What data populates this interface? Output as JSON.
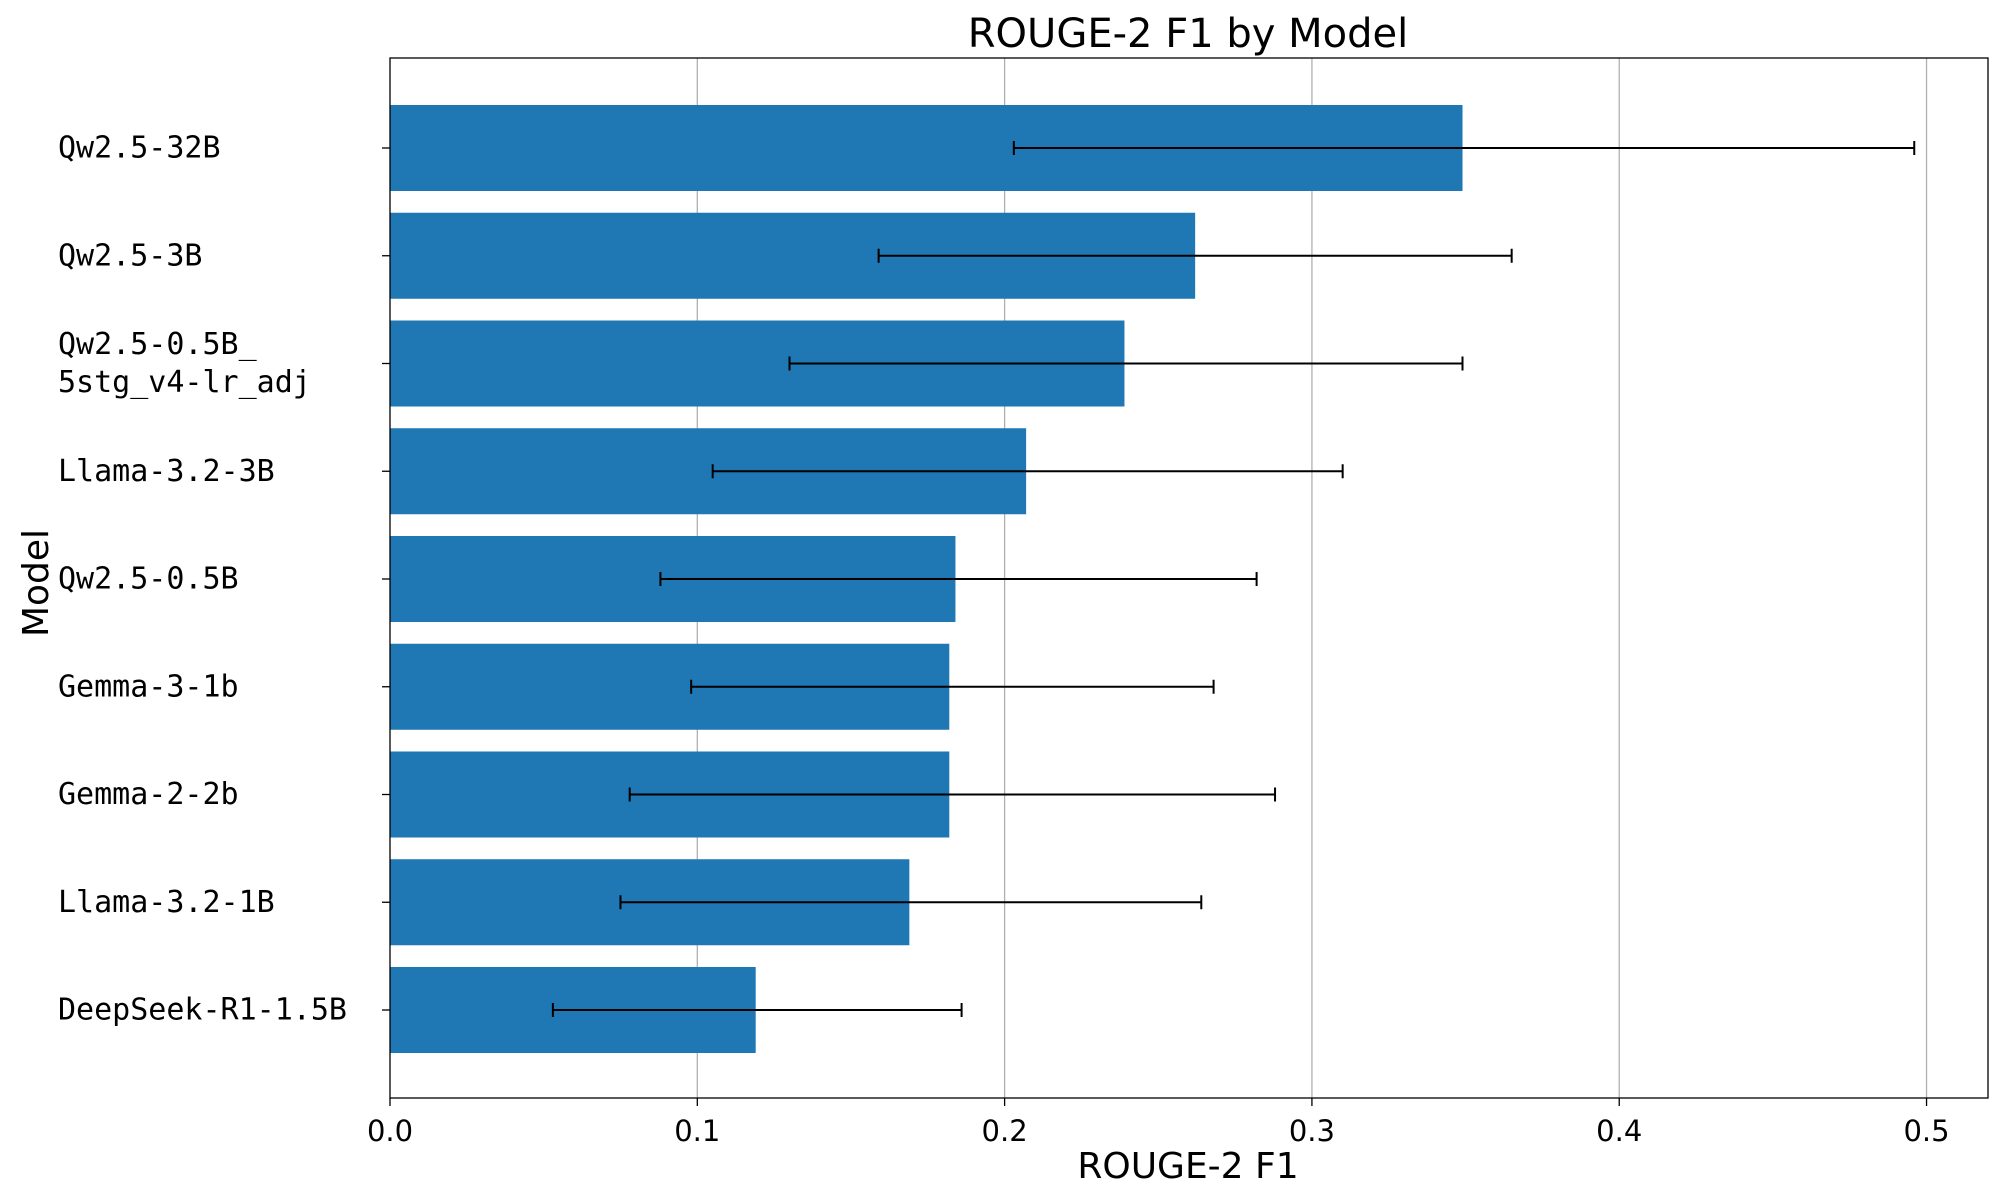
{
  "chart_data": {
    "type": "bar",
    "orientation": "horizontal",
    "title": "ROUGE-2 F1 by Model",
    "xlabel": "ROUGE-2 F1",
    "ylabel": "Model",
    "xlim": [
      0.0,
      0.52
    ],
    "xticks": [
      "0.0",
      "0.1",
      "0.2",
      "0.3",
      "0.4",
      "0.5"
    ],
    "xtick_values": [
      0.0,
      0.1,
      0.2,
      0.3,
      0.4,
      0.5
    ],
    "grid": "x-axis vertical lines",
    "bar_color": "#1f77b4",
    "categories": [
      [
        "Qw2.5-32B"
      ],
      [
        "Qw2.5-3B"
      ],
      [
        "Qw2.5-0.5B_",
        "5stg_v4-lr_adj"
      ],
      [
        "Llama-3.2-3B"
      ],
      [
        "Qw2.5-0.5B"
      ],
      [
        "Gemma-3-1b"
      ],
      [
        "Gemma-2-2b"
      ],
      [
        "Llama-3.2-1B"
      ],
      [
        "DeepSeek-R1-1.5B"
      ]
    ],
    "values": [
      0.349,
      0.262,
      0.239,
      0.207,
      0.184,
      0.182,
      0.182,
      0.169,
      0.119
    ],
    "error_low": [
      0.203,
      0.159,
      0.13,
      0.105,
      0.088,
      0.098,
      0.078,
      0.075,
      0.053
    ],
    "error_high": [
      0.496,
      0.365,
      0.349,
      0.31,
      0.282,
      0.268,
      0.288,
      0.264,
      0.186
    ]
  }
}
